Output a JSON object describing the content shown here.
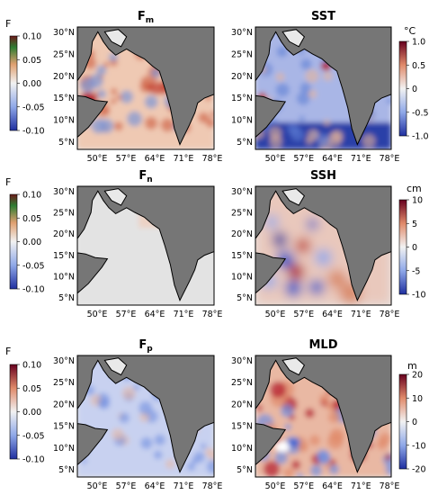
{
  "panels": [
    {
      "id": "fm",
      "title": "F",
      "sub": "m",
      "x_ticks": [
        "50°E",
        "57°E",
        "64°E",
        "71°E",
        "78°E"
      ],
      "y_ticks": [
        "30°N",
        "25°N",
        "20°N",
        "15°N",
        "10°N",
        "5°N"
      ]
    },
    {
      "id": "sst",
      "title": "SST",
      "x_ticks": [
        "50°E",
        "57°E",
        "64°E",
        "71°E",
        "78°E"
      ],
      "y_ticks": [
        "30°N",
        "25°N",
        "20°N",
        "15°N",
        "10°N",
        "5°N"
      ]
    },
    {
      "id": "fn",
      "title": "F",
      "sub": "n",
      "x_ticks": [
        "50°E",
        "57°E",
        "64°E",
        "71°E",
        "78°E"
      ],
      "y_ticks": [
        "30°N",
        "25°N",
        "20°N",
        "15°N",
        "10°N",
        "5°N"
      ]
    },
    {
      "id": "ssh",
      "title": "SSH",
      "x_ticks": [
        "50°E",
        "57°E",
        "64°E",
        "71°E",
        "78°E"
      ],
      "y_ticks": [
        "30°N",
        "25°N",
        "20°N",
        "15°N",
        "10°N",
        "5°N"
      ]
    },
    {
      "id": "fp",
      "title": "F",
      "sub": "p",
      "x_ticks": [
        "50°E",
        "57°E",
        "64°E",
        "71°E",
        "78°E"
      ],
      "y_ticks": [
        "30°N",
        "25°N",
        "20°N",
        "15°N",
        "10°N",
        "5°N"
      ]
    },
    {
      "id": "mld",
      "title": "MLD",
      "x_ticks": [
        "50°E",
        "57°E",
        "64°E",
        "71°E",
        "78°E"
      ],
      "y_ticks": [
        "30°N",
        "25°N",
        "20°N",
        "15°N",
        "10°N",
        "5°N"
      ]
    }
  ],
  "colorbars": {
    "left": {
      "label": "F",
      "ticks": [
        "0.10",
        "0.05",
        "0.00",
        "-0.05",
        "-0.10"
      ]
    },
    "sst": {
      "label": "°C",
      "ticks": [
        "1.0",
        "0.5",
        "0",
        "-0.5",
        "-1.0"
      ]
    },
    "ssh": {
      "label": "cm",
      "ticks": [
        "10",
        "5",
        "0",
        "-5",
        "-10"
      ]
    },
    "mld": {
      "label": "m",
      "ticks": [
        "20",
        "10",
        "0",
        "-10",
        "-20"
      ]
    }
  },
  "colors": {
    "land": "#767676",
    "ocean_neutral": "#e6e6e6",
    "warm": "#b2182b",
    "cool": "#2c58c8"
  }
}
